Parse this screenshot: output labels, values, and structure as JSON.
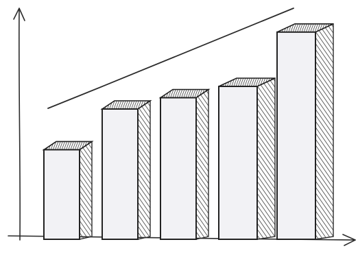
{
  "chart_data": {
    "type": "bar",
    "categories": [
      null,
      null,
      null,
      null,
      null
    ],
    "values": [
      42,
      60,
      65,
      70,
      94
    ],
    "ylim": [
      0,
      100
    ],
    "color": "#f2f2f5"
  }
}
